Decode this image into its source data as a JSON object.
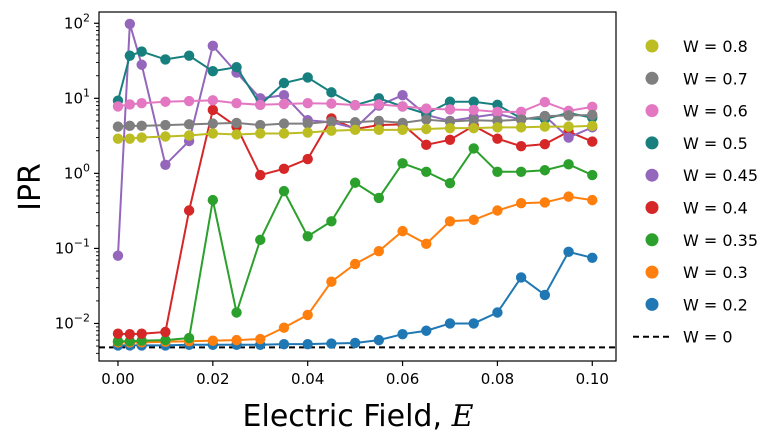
{
  "chart_data": {
    "type": "line",
    "xlabel": "Electric Field, ",
    "xlabel_var": "E",
    "ylabel": "IPR",
    "xlim": [
      -0.004,
      0.105
    ],
    "ylim_log10": [
      -2.5,
      2.15
    ],
    "yscale": "log",
    "x_ticks": [
      0.0,
      0.02,
      0.04,
      0.06,
      0.08,
      0.1
    ],
    "x_tick_labels": [
      "0.00",
      "0.02",
      "0.04",
      "0.06",
      "0.08",
      "0.10"
    ],
    "y_ticks_exp": [
      -2,
      -1,
      0,
      1,
      2
    ],
    "y_tick_base": "10",
    "y_tick_exps": [
      "−2",
      "−1",
      "0",
      "1",
      "2"
    ],
    "legend_position": "right",
    "reference_line": {
      "name": "W = 0",
      "value": 0.0048,
      "color": "#000000",
      "style": "dashed"
    },
    "series": [
      {
        "name": "W = 0.8",
        "color": "#bcbd22",
        "x": [
          0,
          0.0025,
          0.005,
          0.01,
          0.015,
          0.02,
          0.025,
          0.03,
          0.035,
          0.04,
          0.045,
          0.05,
          0.055,
          0.06,
          0.065,
          0.07,
          0.075,
          0.08,
          0.085,
          0.09,
          0.095,
          0.1
        ],
        "y": [
          2.9,
          2.9,
          3.0,
          3.1,
          3.2,
          3.4,
          3.3,
          3.4,
          3.4,
          3.5,
          3.7,
          3.8,
          3.8,
          3.8,
          3.9,
          4.0,
          4.0,
          4.1,
          4.1,
          4.2,
          4.2,
          4.3
        ]
      },
      {
        "name": "W = 0.7",
        "color": "#7f7f7f",
        "x": [
          0,
          0.0025,
          0.005,
          0.01,
          0.015,
          0.02,
          0.025,
          0.03,
          0.035,
          0.04,
          0.045,
          0.05,
          0.055,
          0.06,
          0.065,
          0.07,
          0.075,
          0.08,
          0.085,
          0.09,
          0.095,
          0.1
        ],
        "y": [
          4.2,
          4.3,
          4.3,
          4.4,
          4.5,
          4.6,
          4.7,
          4.4,
          4.6,
          4.6,
          4.9,
          4.8,
          5.0,
          4.7,
          5.2,
          4.9,
          5.1,
          5.0,
          5.2,
          5.8,
          5.9,
          6.0
        ]
      },
      {
        "name": "W = 0.6",
        "color": "#e377c2",
        "x": [
          0,
          0.0025,
          0.005,
          0.01,
          0.015,
          0.02,
          0.025,
          0.03,
          0.035,
          0.04,
          0.045,
          0.05,
          0.055,
          0.06,
          0.065,
          0.07,
          0.075,
          0.08,
          0.085,
          0.09,
          0.095,
          0.1
        ],
        "y": [
          7.8,
          8.3,
          8.6,
          9.0,
          9.2,
          9.4,
          8.6,
          8.2,
          8.4,
          8.6,
          8.5,
          8.1,
          8.3,
          7.8,
          7.3,
          7.1,
          7.0,
          6.6,
          6.6,
          8.9,
          6.8,
          7.7
        ]
      },
      {
        "name": "W = 0.5",
        "color": "#17807e",
        "x": [
          0,
          0.0025,
          0.005,
          0.01,
          0.015,
          0.02,
          0.025,
          0.03,
          0.035,
          0.04,
          0.045,
          0.05,
          0.055,
          0.06,
          0.065,
          0.07,
          0.075,
          0.08,
          0.085,
          0.09,
          0.095,
          0.1
        ],
        "y": [
          9.3,
          37,
          42,
          33,
          37,
          23,
          26,
          8.2,
          16,
          19,
          12,
          8.1,
          10,
          7.8,
          6.2,
          9.0,
          9.0,
          8.2,
          5.4,
          5.3,
          6.4,
          5.5
        ]
      },
      {
        "name": "W = 0.45",
        "color": "#9467bd",
        "x": [
          0,
          0.0025,
          0.005,
          0.01,
          0.015,
          0.02,
          0.025,
          0.03,
          0.035,
          0.04,
          0.045,
          0.05,
          0.055,
          0.06,
          0.065,
          0.07,
          0.075,
          0.08,
          0.085,
          0.09,
          0.095,
          0.1
        ],
        "y": [
          0.08,
          98,
          28,
          1.3,
          2.7,
          50,
          22,
          10,
          11,
          5.1,
          4.8,
          4.0,
          8.0,
          11,
          6.0,
          5.0,
          5.6,
          6.2,
          5.2,
          5.8,
          3.0,
          4.1
        ]
      },
      {
        "name": "W = 0.4",
        "color": "#d62728",
        "x": [
          0,
          0.0025,
          0.005,
          0.01,
          0.015,
          0.02,
          0.025,
          0.03,
          0.035,
          0.04,
          0.045,
          0.05,
          0.055,
          0.06,
          0.065,
          0.07,
          0.075,
          0.08,
          0.085,
          0.09,
          0.095,
          0.1
        ],
        "y": [
          0.0073,
          0.0072,
          0.0073,
          0.0077,
          0.32,
          7.0,
          4.2,
          0.95,
          1.15,
          1.55,
          5.4,
          3.9,
          4.4,
          4.5,
          2.4,
          2.8,
          4.3,
          2.9,
          2.3,
          2.45,
          3.6,
          2.65
        ]
      },
      {
        "name": "W = 0.35",
        "color": "#2ca02c",
        "x": [
          0,
          0.0025,
          0.005,
          0.01,
          0.015,
          0.02,
          0.025,
          0.03,
          0.035,
          0.04,
          0.045,
          0.05,
          0.055,
          0.06,
          0.065,
          0.07,
          0.075,
          0.08,
          0.085,
          0.09,
          0.095,
          0.1
        ],
        "y": [
          0.0058,
          0.0058,
          0.0059,
          0.006,
          0.0064,
          0.44,
          0.014,
          0.13,
          0.58,
          0.145,
          0.23,
          0.75,
          0.47,
          1.36,
          1.05,
          0.74,
          2.15,
          1.05,
          1.05,
          1.1,
          1.32,
          0.95
        ]
      },
      {
        "name": "W = 0.3",
        "color": "#ff7f0e",
        "x": [
          0,
          0.0025,
          0.005,
          0.01,
          0.015,
          0.02,
          0.025,
          0.03,
          0.035,
          0.04,
          0.045,
          0.05,
          0.055,
          0.06,
          0.065,
          0.07,
          0.075,
          0.08,
          0.085,
          0.09,
          0.095,
          0.1
        ],
        "y": [
          0.0056,
          0.0056,
          0.0056,
          0.0057,
          0.0058,
          0.0059,
          0.006,
          0.0062,
          0.0088,
          0.013,
          0.036,
          0.062,
          0.092,
          0.17,
          0.115,
          0.23,
          0.24,
          0.32,
          0.4,
          0.41,
          0.49,
          0.44
        ]
      },
      {
        "name": "W = 0.2",
        "color": "#1f77b4",
        "x": [
          0,
          0.0025,
          0.005,
          0.01,
          0.015,
          0.02,
          0.025,
          0.03,
          0.035,
          0.04,
          0.045,
          0.05,
          0.055,
          0.06,
          0.065,
          0.07,
          0.075,
          0.08,
          0.085,
          0.09,
          0.095,
          0.1
        ],
        "y": [
          0.0051,
          0.0051,
          0.0051,
          0.0051,
          0.0052,
          0.0052,
          0.0052,
          0.0052,
          0.0053,
          0.0053,
          0.0054,
          0.0055,
          0.006,
          0.0072,
          0.008,
          0.01,
          0.01,
          0.014,
          0.041,
          0.024,
          0.09,
          0.075
        ]
      }
    ],
    "legend_order": [
      "W = 0.8",
      "W = 0.7",
      "W = 0.6",
      "W = 0.5",
      "W = 0.45",
      "W = 0.4",
      "W = 0.35",
      "W = 0.3",
      "W = 0.2",
      "W = 0"
    ]
  }
}
